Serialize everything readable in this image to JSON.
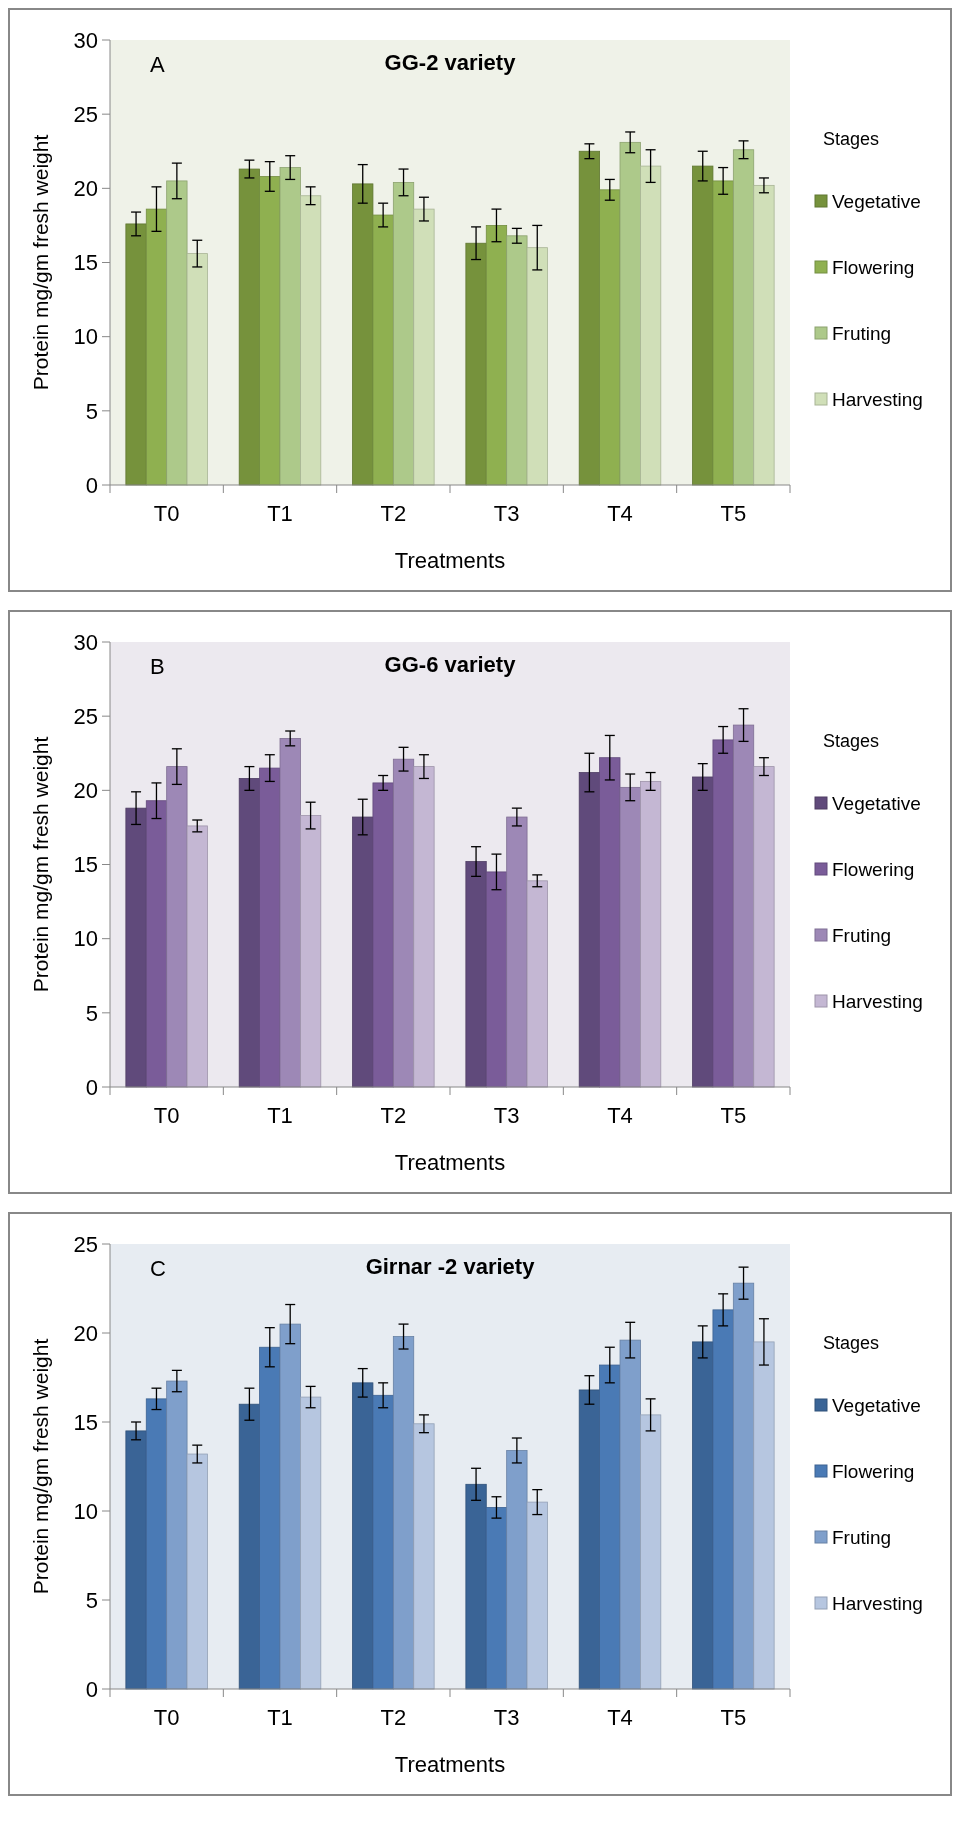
{
  "chart_data": [
    {
      "type": "bar",
      "title": "GG-2 variety",
      "xlabel": "Treatments",
      "ylabel": "Protein mg/gm fresh weight",
      "legend_title": "Stages",
      "legend": "right",
      "annotations": [
        "A"
      ],
      "categories": [
        "T0",
        "T1",
        "T2",
        "T3",
        "T4",
        "T5"
      ],
      "ylim": [
        0,
        30
      ],
      "yticks": [
        0,
        5,
        10,
        15,
        20,
        25,
        30
      ],
      "series": [
        {
          "name": "Vegetative",
          "color": "#76923c",
          "values": [
            17.6,
            21.3,
            20.3,
            16.3,
            22.5,
            21.5
          ],
          "errors": [
            0.8,
            0.6,
            1.3,
            1.1,
            0.5,
            1.0
          ]
        },
        {
          "name": "Flowering",
          "color": "#8fb050",
          "values": [
            18.6,
            20.8,
            18.2,
            17.5,
            19.9,
            20.5
          ],
          "errors": [
            1.5,
            1.0,
            0.8,
            1.1,
            0.7,
            0.9
          ]
        },
        {
          "name": "Fruting",
          "color": "#adc98a",
          "values": [
            20.5,
            21.4,
            20.4,
            16.8,
            23.1,
            22.6
          ],
          "errors": [
            1.2,
            0.8,
            0.9,
            0.5,
            0.7,
            0.6
          ]
        },
        {
          "name": "Harvesting",
          "color": "#d0dfb8",
          "values": [
            15.6,
            19.5,
            18.6,
            16.0,
            21.5,
            20.2
          ],
          "errors": [
            0.9,
            0.6,
            0.8,
            1.5,
            1.1,
            0.5
          ]
        }
      ]
    },
    {
      "type": "bar",
      "title": "GG-6  variety",
      "xlabel": "Treatments",
      "ylabel": "Protein mg/gm fresh weight",
      "legend_title": "Stages",
      "legend": "right",
      "annotations": [
        "B"
      ],
      "categories": [
        "T0",
        "T1",
        "T2",
        "T3",
        "T4",
        "T5"
      ],
      "ylim": [
        0,
        30
      ],
      "yticks": [
        0,
        5,
        10,
        15,
        20,
        25,
        30
      ],
      "series": [
        {
          "name": "Vegetative",
          "color": "#604a7b",
          "values": [
            18.8,
            20.8,
            18.2,
            15.2,
            21.2,
            20.9
          ],
          "errors": [
            1.1,
            0.8,
            1.2,
            1.0,
            1.3,
            0.9
          ]
        },
        {
          "name": "Flowering",
          "color": "#7a5c99",
          "values": [
            19.3,
            21.5,
            20.5,
            14.5,
            22.2,
            23.4
          ],
          "errors": [
            1.2,
            0.9,
            0.5,
            1.2,
            1.5,
            0.9
          ]
        },
        {
          "name": "Fruting",
          "color": "#9d88b6",
          "values": [
            21.6,
            23.5,
            22.1,
            18.2,
            20.2,
            24.4
          ],
          "errors": [
            1.2,
            0.5,
            0.8,
            0.6,
            0.9,
            1.1
          ]
        },
        {
          "name": "Harvesting",
          "color": "#c4b7d3",
          "values": [
            17.6,
            18.3,
            21.6,
            13.9,
            20.6,
            21.6
          ],
          "errors": [
            0.4,
            0.9,
            0.8,
            0.4,
            0.6,
            0.6
          ]
        }
      ]
    },
    {
      "type": "bar",
      "title": "Girnar -2 variety",
      "xlabel": "Treatments",
      "ylabel": "Protein mg/gm fresh weight",
      "legend_title": "Stages",
      "legend": "right",
      "annotations": [
        "C"
      ],
      "categories": [
        "T0",
        "T1",
        "T2",
        "T3",
        "T4",
        "T5"
      ],
      "ylim": [
        0,
        25
      ],
      "yticks": [
        0,
        5,
        10,
        15,
        20,
        25
      ],
      "series": [
        {
          "name": "Vegetative",
          "color": "#3a6496",
          "values": [
            14.5,
            16.0,
            17.2,
            11.5,
            16.8,
            19.5
          ],
          "errors": [
            0.5,
            0.9,
            0.8,
            0.9,
            0.8,
            0.9
          ]
        },
        {
          "name": "Flowering",
          "color": "#4a7ab5",
          "values": [
            16.3,
            19.2,
            16.5,
            10.2,
            18.2,
            21.3
          ],
          "errors": [
            0.6,
            1.1,
            0.7,
            0.6,
            1.0,
            0.9
          ]
        },
        {
          "name": "Fruting",
          "color": "#7f9fcb",
          "values": [
            17.3,
            20.5,
            19.8,
            13.4,
            19.6,
            22.8
          ],
          "errors": [
            0.6,
            1.1,
            0.7,
            0.7,
            1.0,
            0.9
          ]
        },
        {
          "name": "Harvesting",
          "color": "#b6c6e0",
          "values": [
            13.2,
            16.4,
            14.9,
            10.5,
            15.4,
            19.5
          ],
          "errors": [
            0.5,
            0.6,
            0.5,
            0.7,
            0.9,
            1.3
          ]
        }
      ]
    }
  ]
}
